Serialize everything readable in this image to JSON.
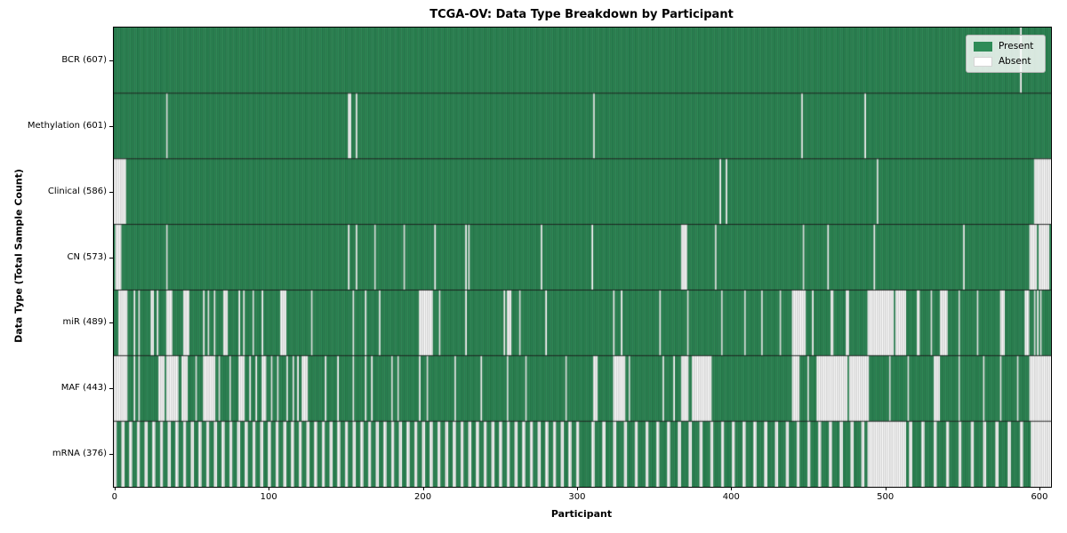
{
  "chart_data": {
    "type": "heatmap",
    "title": "TCGA-OV: Data Type Breakdown by Participant",
    "xlabel": "Participant",
    "ylabel": "Data Type (Total Sample Count)",
    "n_participants": 608,
    "x_ticks": [
      0,
      100,
      200,
      300,
      400,
      500,
      600
    ],
    "xlim": [
      -0.5,
      607.5
    ],
    "legend": [
      {
        "key": "present",
        "label": "Present"
      },
      {
        "key": "absent",
        "label": "Absent"
      }
    ],
    "legend_position": "upper right",
    "colors": {
      "present": "#2e8b57",
      "present_edge": "#1d5b39",
      "absent": "#ffffff",
      "absent_edge": "#a9a9a9",
      "separator": "#141414"
    },
    "rows": [
      {
        "name": "BCR",
        "label": "BCR (607)",
        "present_count": 607,
        "absent_ranges": [
          [
            588,
            588
          ]
        ]
      },
      {
        "name": "Methylation",
        "label": "Methylation (601)",
        "present_count": 601,
        "absent_ranges": [
          [
            34,
            34
          ],
          [
            152,
            153
          ],
          [
            157,
            157
          ],
          [
            311,
            311
          ],
          [
            446,
            446
          ],
          [
            487,
            487
          ]
        ]
      },
      {
        "name": "Clinical",
        "label": "Clinical (586)",
        "present_count": 586,
        "absent_ranges": [
          [
            0,
            7
          ],
          [
            393,
            393
          ],
          [
            397,
            397
          ],
          [
            495,
            495
          ],
          [
            597,
            607
          ]
        ]
      },
      {
        "name": "CN",
        "label": "CN (573)",
        "present_count": 573,
        "absent_ranges": [
          [
            1,
            4
          ],
          [
            34,
            34
          ],
          [
            152,
            152
          ],
          [
            157,
            157
          ],
          [
            169,
            169
          ],
          [
            188,
            188
          ],
          [
            208,
            208
          ],
          [
            228,
            228
          ],
          [
            230,
            230
          ],
          [
            277,
            277
          ],
          [
            310,
            310
          ],
          [
            368,
            371
          ],
          [
            390,
            390
          ],
          [
            447,
            447
          ],
          [
            463,
            463
          ],
          [
            493,
            493
          ],
          [
            551,
            551
          ],
          [
            594,
            598
          ],
          [
            600,
            606
          ]
        ]
      },
      {
        "name": "miR",
        "label": "miR (489)",
        "present_count": 489,
        "absent_ranges": [
          [
            3,
            8
          ],
          [
            13,
            13
          ],
          [
            16,
            16
          ],
          [
            24,
            25
          ],
          [
            28,
            28
          ],
          [
            34,
            37
          ],
          [
            45,
            48
          ],
          [
            58,
            58
          ],
          [
            61,
            61
          ],
          [
            65,
            65
          ],
          [
            71,
            73
          ],
          [
            81,
            81
          ],
          [
            84,
            84
          ],
          [
            90,
            90
          ],
          [
            96,
            96
          ],
          [
            108,
            111
          ],
          [
            128,
            128
          ],
          [
            155,
            155
          ],
          [
            163,
            163
          ],
          [
            172,
            172
          ],
          [
            198,
            206
          ],
          [
            211,
            211
          ],
          [
            228,
            228
          ],
          [
            253,
            253
          ],
          [
            255,
            257
          ],
          [
            263,
            263
          ],
          [
            280,
            280
          ],
          [
            324,
            324
          ],
          [
            329,
            329
          ],
          [
            354,
            354
          ],
          [
            372,
            372
          ],
          [
            394,
            394
          ],
          [
            409,
            409
          ],
          [
            420,
            420
          ],
          [
            432,
            432
          ],
          [
            440,
            448
          ],
          [
            453,
            453
          ],
          [
            465,
            466
          ],
          [
            475,
            476
          ],
          [
            489,
            505
          ],
          [
            507,
            513
          ],
          [
            521,
            522
          ],
          [
            530,
            530
          ],
          [
            536,
            540
          ],
          [
            548,
            548
          ],
          [
            560,
            560
          ],
          [
            575,
            577
          ],
          [
            591,
            593
          ],
          [
            597,
            597
          ],
          [
            599,
            599
          ],
          [
            601,
            601
          ]
        ]
      },
      {
        "name": "MAF",
        "label": "MAF (443)",
        "present_count": 443,
        "absent_ranges": [
          [
            0,
            8
          ],
          [
            13,
            13
          ],
          [
            16,
            16
          ],
          [
            29,
            32
          ],
          [
            34,
            41
          ],
          [
            44,
            47
          ],
          [
            53,
            53
          ],
          [
            58,
            65
          ],
          [
            68,
            68
          ],
          [
            75,
            75
          ],
          [
            81,
            84
          ],
          [
            88,
            88
          ],
          [
            92,
            92
          ],
          [
            96,
            98
          ],
          [
            102,
            102
          ],
          [
            106,
            106
          ],
          [
            112,
            112
          ],
          [
            116,
            116
          ],
          [
            119,
            119
          ],
          [
            122,
            125
          ],
          [
            137,
            137
          ],
          [
            145,
            145
          ],
          [
            155,
            155
          ],
          [
            163,
            163
          ],
          [
            167,
            167
          ],
          [
            180,
            180
          ],
          [
            184,
            184
          ],
          [
            198,
            198
          ],
          [
            203,
            203
          ],
          [
            221,
            221
          ],
          [
            238,
            238
          ],
          [
            255,
            255
          ],
          [
            267,
            267
          ],
          [
            293,
            293
          ],
          [
            311,
            313
          ],
          [
            324,
            331
          ],
          [
            334,
            334
          ],
          [
            356,
            356
          ],
          [
            363,
            363
          ],
          [
            368,
            372
          ],
          [
            375,
            387
          ],
          [
            440,
            444
          ],
          [
            450,
            450
          ],
          [
            456,
            475
          ],
          [
            477,
            489
          ],
          [
            503,
            503
          ],
          [
            515,
            515
          ],
          [
            532,
            535
          ],
          [
            548,
            548
          ],
          [
            564,
            564
          ],
          [
            575,
            575
          ],
          [
            586,
            586
          ],
          [
            594,
            607
          ]
        ]
      },
      {
        "name": "mRNA",
        "label": "mRNA (376)",
        "present_count": 376,
        "absent_ranges": [
          [
            0,
            1
          ],
          [
            5,
            6
          ],
          [
            10,
            11
          ],
          [
            15,
            16
          ],
          [
            20,
            21
          ],
          [
            25,
            26
          ],
          [
            30,
            31
          ],
          [
            35,
            36
          ],
          [
            40,
            41
          ],
          [
            45,
            46
          ],
          [
            50,
            51
          ],
          [
            55,
            56
          ],
          [
            60,
            61
          ],
          [
            65,
            66
          ],
          [
            70,
            71
          ],
          [
            75,
            76
          ],
          [
            80,
            81
          ],
          [
            85,
            86
          ],
          [
            90,
            91
          ],
          [
            95,
            96
          ],
          [
            100,
            101
          ],
          [
            105,
            106
          ],
          [
            110,
            111
          ],
          [
            115,
            116
          ],
          [
            120,
            121
          ],
          [
            125,
            126
          ],
          [
            130,
            131
          ],
          [
            135,
            136
          ],
          [
            140,
            141
          ],
          [
            145,
            146
          ],
          [
            150,
            151
          ],
          [
            155,
            156
          ],
          [
            160,
            161
          ],
          [
            165,
            166
          ],
          [
            170,
            171
          ],
          [
            175,
            176
          ],
          [
            180,
            181
          ],
          [
            185,
            186
          ],
          [
            190,
            191
          ],
          [
            195,
            196
          ],
          [
            200,
            201
          ],
          [
            205,
            206
          ],
          [
            210,
            211
          ],
          [
            215,
            216
          ],
          [
            220,
            221
          ],
          [
            225,
            226
          ],
          [
            230,
            231
          ],
          [
            235,
            236
          ],
          [
            240,
            241
          ],
          [
            245,
            246
          ],
          [
            250,
            251
          ],
          [
            255,
            256
          ],
          [
            260,
            261
          ],
          [
            265,
            266
          ],
          [
            270,
            271
          ],
          [
            275,
            276
          ],
          [
            280,
            281
          ],
          [
            285,
            286
          ],
          [
            290,
            291
          ],
          [
            295,
            296
          ],
          [
            300,
            301
          ],
          [
            310,
            311
          ],
          [
            317,
            318
          ],
          [
            324,
            325
          ],
          [
            331,
            332
          ],
          [
            338,
            339
          ],
          [
            345,
            346
          ],
          [
            352,
            353
          ],
          [
            359,
            360
          ],
          [
            366,
            367
          ],
          [
            373,
            374
          ],
          [
            380,
            381
          ],
          [
            387,
            388
          ],
          [
            394,
            395
          ],
          [
            401,
            402
          ],
          [
            408,
            409
          ],
          [
            415,
            416
          ],
          [
            422,
            423
          ],
          [
            429,
            430
          ],
          [
            436,
            437
          ],
          [
            443,
            444
          ],
          [
            450,
            451
          ],
          [
            457,
            458
          ],
          [
            464,
            465
          ],
          [
            471,
            472
          ],
          [
            478,
            479
          ],
          [
            485,
            486
          ],
          [
            489,
            513
          ],
          [
            516,
            517
          ],
          [
            524,
            525
          ],
          [
            532,
            533
          ],
          [
            540,
            541
          ],
          [
            548,
            549
          ],
          [
            556,
            557
          ],
          [
            564,
            565
          ],
          [
            572,
            573
          ],
          [
            580,
            581
          ],
          [
            588,
            589
          ],
          [
            595,
            607
          ]
        ]
      }
    ]
  }
}
